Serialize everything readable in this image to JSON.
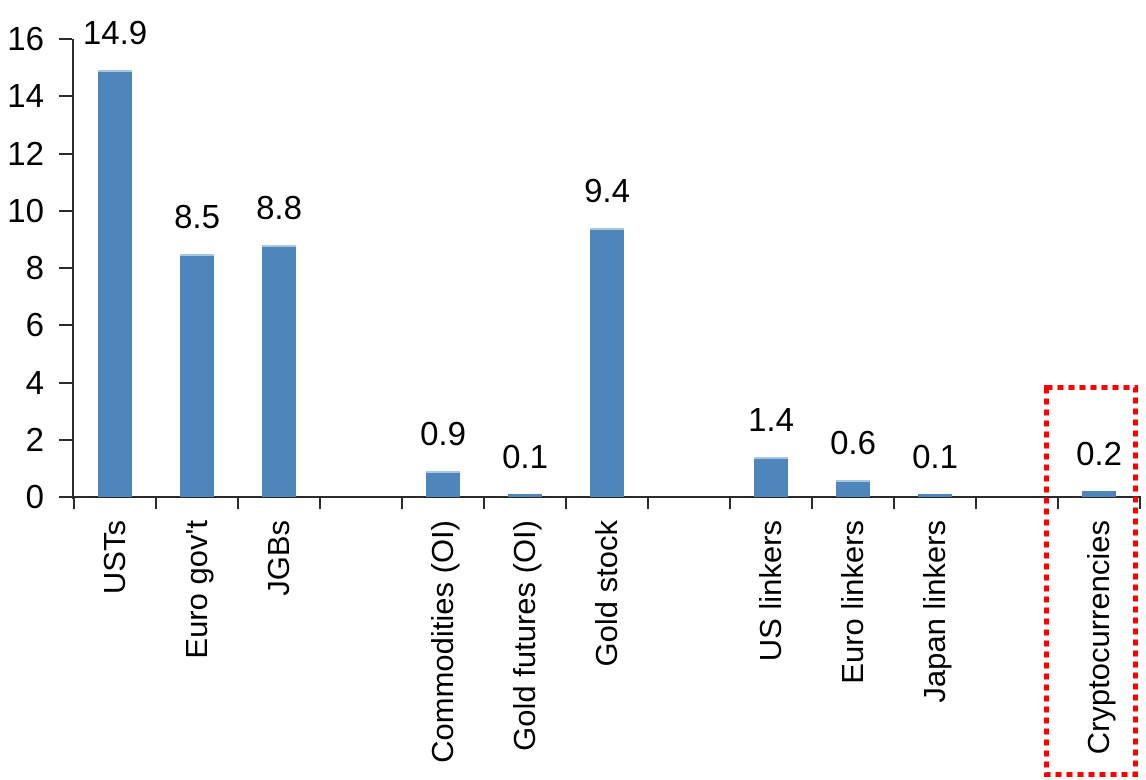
{
  "chart_data": {
    "type": "bar",
    "title": "",
    "categories": [
      "USTs",
      "Euro gov't",
      "JGBs",
      "",
      "Commodities (OI)",
      "Gold futures (OI)",
      "Gold stock",
      "",
      "US linkers",
      "Euro linkers",
      "Japan linkers",
      "",
      "Cryptocurrencies"
    ],
    "values": [
      14.9,
      8.5,
      8.8,
      null,
      0.9,
      0.1,
      9.4,
      null,
      1.4,
      0.6,
      0.1,
      null,
      0.2
    ],
    "data_labels": [
      "14.9",
      "8.5",
      "8.8",
      "",
      "0.9",
      "0.1",
      "9.4",
      "",
      "1.4",
      "0.6",
      "0.1",
      "",
      "0.2"
    ],
    "xlabel": "",
    "ylabel": "",
    "ylim": [
      0,
      16
    ],
    "yticks": [
      0,
      2,
      4,
      6,
      8,
      10,
      12,
      14,
      16
    ],
    "grid": false,
    "legend": null,
    "bar_color": "#4e86bc",
    "bar_top_edge_color": "#a9c6e0",
    "axis_color": "#2b2b2b",
    "text_color": "#000000",
    "background_color": "#ffffff",
    "highlight": {
      "target_category": "Cryptocurrencies",
      "shape": "dotted-rectangle",
      "color": "#ff0000"
    }
  }
}
